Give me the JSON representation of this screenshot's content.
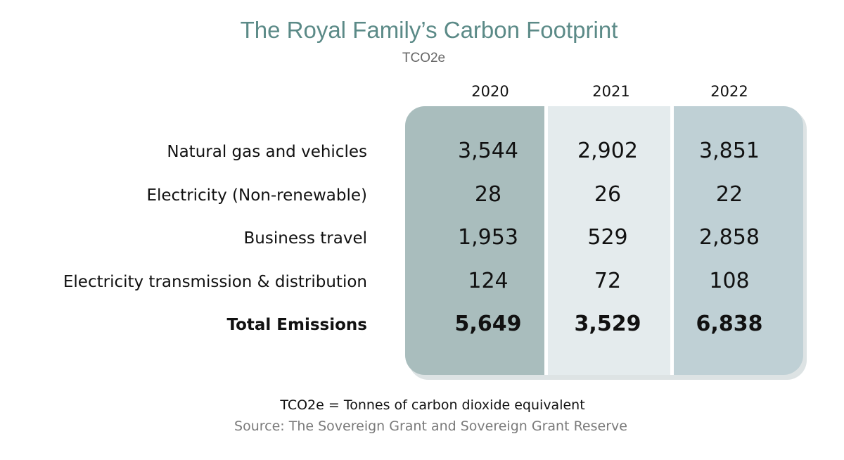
{
  "chart_data": {
    "type": "table",
    "title": "The Royal Family’s Carbon Footprint",
    "subtitle": "TCO2e",
    "columns": [
      "2020",
      "2021",
      "2022"
    ],
    "rows": [
      {
        "label": "Natural gas and vehicles",
        "values": [
          "3,544",
          "2,902",
          "3,851"
        ]
      },
      {
        "label": "Electricity (Non-renewable)",
        "values": [
          "28",
          "26",
          "22"
        ]
      },
      {
        "label": "Business travel",
        "values": [
          "1,953",
          "529",
          "2,858"
        ]
      },
      {
        "label": "Electricity transmission & distribution",
        "values": [
          "124",
          "72",
          "108"
        ]
      },
      {
        "label": "Total Emissions",
        "values": [
          "5,649",
          "3,529",
          "6,838"
        ]
      }
    ],
    "note": "TCO2e = Tonnes of carbon dioxide equivalent",
    "source": "Source: The Sovereign Grant and Sovereign Grant Reserve"
  },
  "colors": {
    "title": "#5b8a87",
    "column_2020": "#a9bdbd",
    "column_2021": "#e4ebed",
    "column_2022": "#bfd0d5"
  }
}
